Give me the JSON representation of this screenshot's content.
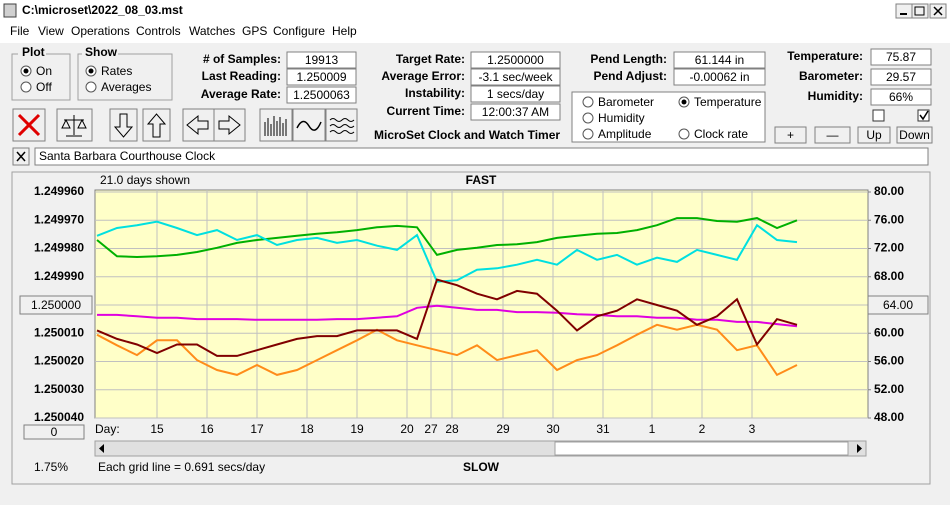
{
  "window": {
    "title": "C:\\microset\\2022_08_03.mst"
  },
  "menu": [
    "File",
    "View",
    "Operations",
    "Controls",
    "Watches",
    "GPS",
    "Configure",
    "Help"
  ],
  "plot_group": {
    "title": "Plot",
    "options": [
      "On",
      "Off"
    ]
  },
  "show_group": {
    "title": "Show",
    "options": [
      "Rates",
      "Averages"
    ]
  },
  "fields": [
    {
      "label": "# of Samples:",
      "value": "19913"
    },
    {
      "label": "Last Reading:",
      "value": "1.250009"
    },
    {
      "label": "Average Rate:",
      "value": "1.2500063"
    },
    {
      "label": "Target Rate:",
      "value": "1.2500000"
    },
    {
      "label": "Average Error:",
      "value": "-3.1 sec/week"
    },
    {
      "label": "Instability:",
      "value": "1 secs/day"
    },
    {
      "label": "Current Time:",
      "value": "12:00:37 AM"
    },
    {
      "label": "Pend Length:",
      "value": "61.144 in"
    },
    {
      "label": "Pend Adjust:",
      "value": "-0.00062 in"
    },
    {
      "label": "Temperature:",
      "value": "75.87"
    },
    {
      "label": "Barometer:",
      "value": "29.57"
    },
    {
      "label": "Humidity:",
      "value": "66%"
    }
  ],
  "app_title": "MicroSet Clock and Watch Timer",
  "buttons": [
    "+",
    "—",
    "Up",
    "Down"
  ],
  "clock_name": "Santa Barbara Courthouse Clock",
  "chart_data": {
    "type": "line",
    "title": "FAST",
    "bottom_label": "SLOW",
    "days_shown": "21.0 days shown",
    "x_label": "Day:",
    "footnote": "Each grid line = 0.691 secs/day",
    "corner_label": "1.75%",
    "offset_button": "0",
    "grid": true,
    "x": [
      -1.2,
      -0.8,
      -0.4,
      0,
      0.4,
      0.8,
      1.2,
      1.6,
      2,
      2.4,
      2.8,
      3.2,
      3.6,
      4,
      4.4,
      4.8,
      5.2,
      5.6,
      6,
      6.4,
      6.8,
      7.2,
      7.6,
      8,
      8.4,
      8.8,
      9.2,
      9.6,
      10,
      10.4,
      10.8,
      11.2,
      11.6,
      12,
      12.4,
      12.8
    ],
    "xlim": [
      -1.24,
      14.22
    ],
    "xticks": [
      {
        "value": 0,
        "label": "15"
      },
      {
        "value": 1,
        "label": "16"
      },
      {
        "value": 2,
        "label": "17"
      },
      {
        "value": 3,
        "label": "18"
      },
      {
        "value": 4,
        "label": "19"
      },
      {
        "value": 5,
        "label": "20"
      },
      {
        "value": 5.48,
        "label": "27"
      },
      {
        "value": 5.9,
        "label": "28"
      },
      {
        "value": 6.92,
        "label": "29"
      },
      {
        "value": 7.92,
        "label": "30"
      },
      {
        "value": 8.92,
        "label": "31"
      },
      {
        "value": 9.9,
        "label": "1"
      },
      {
        "value": 10.9,
        "label": "2"
      },
      {
        "value": 11.9,
        "label": "3"
      }
    ],
    "ylim": [
      1.25004,
      1.24996
    ],
    "yticks": [
      {
        "value": 1.24996,
        "label": "1.249960"
      },
      {
        "value": 1.24997,
        "label": "1.249970"
      },
      {
        "value": 1.24998,
        "label": "1.249980"
      },
      {
        "value": 1.24999,
        "label": "1.249990"
      },
      {
        "value": 1.25,
        "label": "1.250000"
      },
      {
        "value": 1.25001,
        "label": "1.250010"
      },
      {
        "value": 1.25002,
        "label": "1.250020"
      },
      {
        "value": 1.25003,
        "label": "1.250030"
      },
      {
        "value": 1.25004,
        "label": "1.250040"
      }
    ],
    "y2lim": [
      48,
      80
    ],
    "y2ticks": [
      {
        "value": 80,
        "label": "80.00"
      },
      {
        "value": 76,
        "label": "76.00"
      },
      {
        "value": 72,
        "label": "72.00"
      },
      {
        "value": 68,
        "label": "68.00"
      },
      {
        "value": 64,
        "label": "64.00"
      },
      {
        "value": 60,
        "label": "60.00"
      },
      {
        "value": 56,
        "label": "56.00"
      },
      {
        "value": 52,
        "label": "52.00"
      },
      {
        "value": 48,
        "label": "48.00"
      }
    ],
    "series": [
      {
        "name": "Barometer",
        "color": "#ff8c1a",
        "axis": "y2",
        "values": [
          59.8,
          58.3,
          56.9,
          59.0,
          59.0,
          56.2,
          54.8,
          54.1,
          55.5,
          54.1,
          54.8,
          56.2,
          57.6,
          59.0,
          60.5,
          59.0,
          58.3,
          57.6,
          56.9,
          58.3,
          56.2,
          56.9,
          57.6,
          54.8,
          56.2,
          56.9,
          58.3,
          59.8,
          61.2,
          60.5,
          61.2,
          60.5,
          57.6,
          58.3,
          54.1,
          55.5
        ]
      },
      {
        "name": "Temperature",
        "color": "#00b000",
        "axis": "y2",
        "selected": true,
        "values": [
          73.2,
          70.9,
          70.8,
          70.9,
          71.1,
          71.5,
          72.1,
          72.8,
          73.2,
          73.5,
          73.8,
          74.1,
          74.3,
          74.6,
          75.0,
          75.2,
          75.0,
          71.1,
          71.8,
          72.1,
          72.5,
          72.6,
          72.9,
          73.5,
          73.8,
          74.1,
          74.2,
          74.6,
          75.3,
          76.3,
          76.3,
          75.9,
          75.8,
          76.3,
          74.9,
          76.0
        ]
      },
      {
        "name": "Humidity",
        "color": "#e000e0",
        "axis": "y2",
        "values": [
          62.6,
          62.6,
          62.4,
          62.2,
          62.2,
          62.0,
          62.0,
          62.0,
          61.9,
          61.9,
          61.9,
          61.9,
          62.0,
          62.0,
          62.2,
          62.4,
          63.6,
          63.9,
          63.6,
          63.3,
          63.3,
          63.0,
          63.0,
          62.9,
          62.7,
          62.6,
          62.4,
          62.4,
          62.2,
          62.2,
          61.9,
          61.9,
          61.6,
          61.6,
          61.3,
          61.0
        ]
      },
      {
        "name": "Amplitude",
        "color": "#00e0e0",
        "axis": "y2",
        "values": [
          73.8,
          74.9,
          75.3,
          75.8,
          74.9,
          73.9,
          74.6,
          73.2,
          73.9,
          72.5,
          73.2,
          73.5,
          72.8,
          73.2,
          72.4,
          71.8,
          73.9,
          67.3,
          67.5,
          69.0,
          69.2,
          69.7,
          70.4,
          69.7,
          71.8,
          70.4,
          71.1,
          69.7,
          70.7,
          70.1,
          71.8,
          71.1,
          70.4,
          75.3,
          73.2,
          72.9
        ]
      },
      {
        "name": "Clock rate",
        "color": "#800000",
        "values": [
          1.250009,
          1.250012,
          1.250014,
          1.250017,
          1.250014,
          1.250014,
          1.250018,
          1.250018,
          1.250016,
          1.250014,
          1.250012,
          1.250011,
          1.250011,
          1.250009,
          1.250009,
          1.250009,
          1.250012,
          1.249991,
          1.249993,
          1.249996,
          1.249998,
          1.249995,
          1.249996,
          1.250002,
          1.250009,
          1.250004,
          1.250002,
          1.249998,
          1.25,
          1.250002,
          1.250007,
          1.250004,
          1.249998,
          1.250014,
          1.250005,
          1.250007
        ]
      }
    ]
  }
}
